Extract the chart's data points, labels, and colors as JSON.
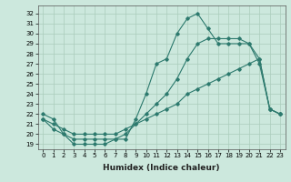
{
  "xlabel": "Humidex (Indice chaleur)",
  "bg_color": "#cce8dd",
  "grid_color": "#aaccbb",
  "line_color": "#2d7a6e",
  "xlim": [
    -0.5,
    23.5
  ],
  "ylim": [
    18.5,
    32.8
  ],
  "yticks": [
    19,
    20,
    21,
    22,
    23,
    24,
    25,
    26,
    27,
    28,
    29,
    30,
    31,
    32
  ],
  "xticks": [
    0,
    1,
    2,
    3,
    4,
    5,
    6,
    7,
    8,
    9,
    10,
    11,
    12,
    13,
    14,
    15,
    16,
    17,
    18,
    19,
    20,
    21,
    22,
    23
  ],
  "line1_x": [
    0,
    1,
    2,
    3,
    4,
    5,
    6,
    7,
    8,
    9,
    10,
    11,
    12,
    13,
    14,
    15,
    16,
    17,
    18,
    19,
    20,
    21,
    22,
    23
  ],
  "line1_y": [
    22.0,
    21.5,
    20.0,
    19.0,
    19.0,
    19.0,
    19.0,
    19.5,
    19.5,
    21.5,
    24.0,
    27.0,
    27.5,
    30.0,
    31.5,
    32.0,
    30.5,
    29.0,
    29.0,
    29.0,
    29.0,
    27.0,
    22.5,
    22.0
  ],
  "line2_x": [
    0,
    1,
    2,
    3,
    4,
    5,
    6,
    7,
    8,
    9,
    10,
    11,
    12,
    13,
    14,
    15,
    16,
    17,
    18,
    19,
    20,
    21,
    22,
    23
  ],
  "line2_y": [
    21.5,
    20.5,
    20.0,
    19.5,
    19.5,
    19.5,
    19.5,
    19.5,
    20.0,
    21.0,
    22.0,
    23.0,
    24.0,
    25.5,
    27.5,
    29.0,
    29.5,
    29.5,
    29.5,
    29.5,
    29.0,
    27.5,
    22.5,
    22.0
  ],
  "line3_x": [
    0,
    1,
    2,
    3,
    4,
    5,
    6,
    7,
    8,
    9,
    10,
    11,
    12,
    13,
    14,
    15,
    16,
    17,
    18,
    19,
    20,
    21,
    22,
    23
  ],
  "line3_y": [
    21.5,
    21.0,
    20.5,
    20.0,
    20.0,
    20.0,
    20.0,
    20.0,
    20.5,
    21.0,
    21.5,
    22.0,
    22.5,
    23.0,
    24.0,
    24.5,
    25.0,
    25.5,
    26.0,
    26.5,
    27.0,
    27.5,
    22.5,
    22.0
  ],
  "marker": "D",
  "markersize": 1.8,
  "linewidth": 0.8,
  "tick_fontsize": 5,
  "xlabel_fontsize": 6.5
}
